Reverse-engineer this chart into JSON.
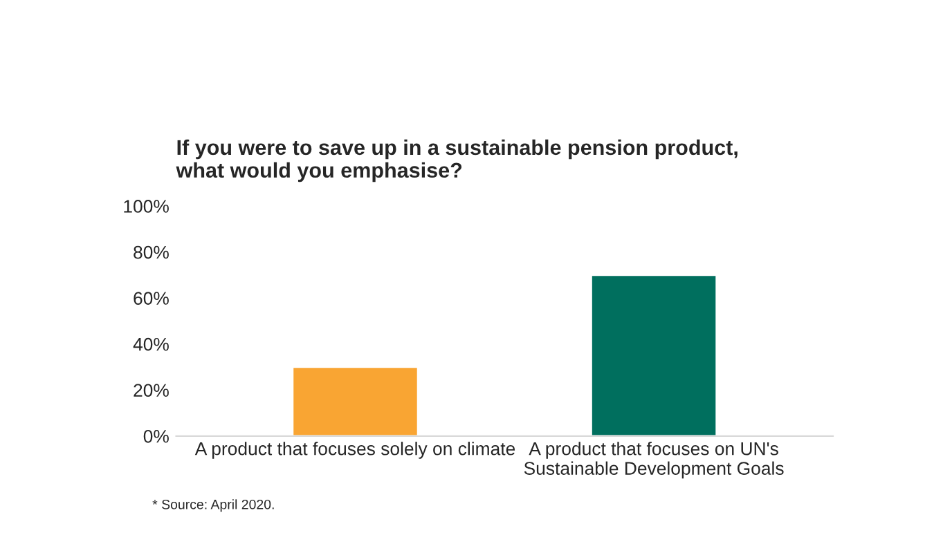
{
  "chart_data": {
    "type": "bar",
    "title": "If you were to save up in a sustainable pension product,\nwhat would you emphasise?",
    "categories": [
      "A product that focuses solely on climate",
      "A product that focuses on UN's\nSustainable Development Goals"
    ],
    "values": [
      30,
      70
    ],
    "colors": [
      "#f9a533",
      "#006f5e"
    ],
    "ylim": [
      0,
      100
    ],
    "yticks": [
      {
        "value": 0,
        "label": "0%"
      },
      {
        "value": 20,
        "label": "20%"
      },
      {
        "value": 40,
        "label": "40%"
      },
      {
        "value": 60,
        "label": "60%"
      },
      {
        "value": 80,
        "label": "80%"
      },
      {
        "value": 100,
        "label": "100%"
      }
    ],
    "grid": false,
    "annotations": [
      "* Source: April 2020."
    ]
  }
}
